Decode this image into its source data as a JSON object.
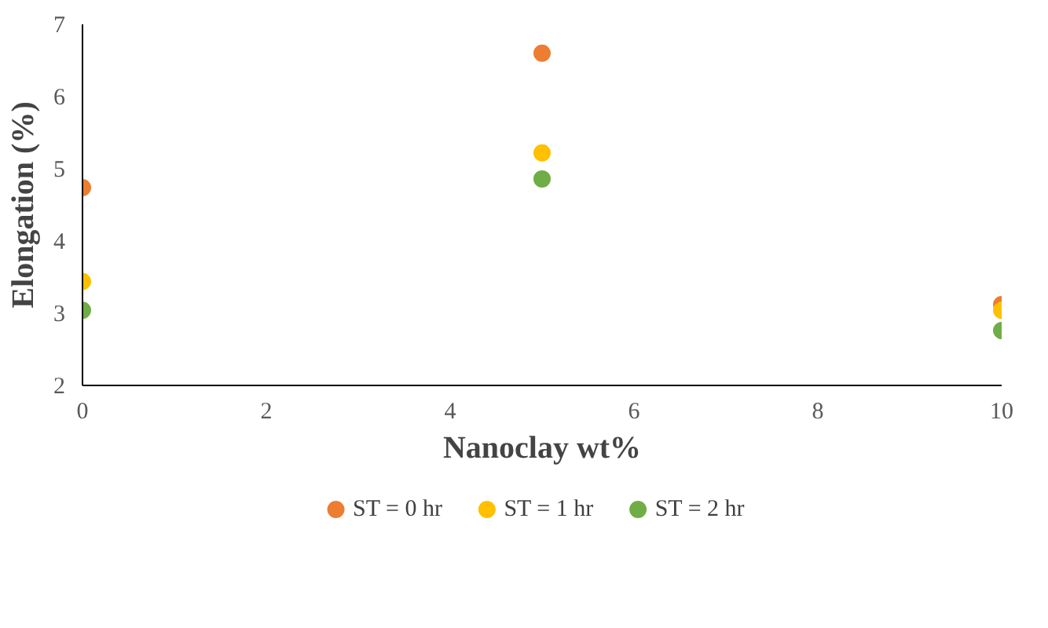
{
  "chart_data": {
    "type": "scatter",
    "xlabel": "Nanoclay wt%",
    "ylabel": "Elongation (%)",
    "x": [
      0,
      5,
      10
    ],
    "series": [
      {
        "name": "ST = 0 hr",
        "color": "#ed7d31",
        "values": [
          4.74,
          6.6,
          3.12
        ]
      },
      {
        "name": "ST = 1 hr",
        "color": "#ffc000",
        "values": [
          3.44,
          5.22,
          3.04
        ]
      },
      {
        "name": "ST = 2 hr",
        "color": "#70ad47",
        "values": [
          3.04,
          4.86,
          2.76
        ]
      }
    ],
    "xlim": [
      0,
      10
    ],
    "ylim": [
      2,
      7
    ],
    "xticks": [
      0,
      2,
      4,
      6,
      8,
      10
    ],
    "yticks": [
      2,
      3,
      4,
      5,
      6,
      7
    ],
    "grid": false,
    "legend": "bottom",
    "marker": "circle"
  }
}
